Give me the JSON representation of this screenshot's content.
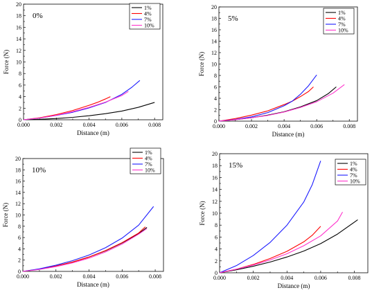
{
  "colors": {
    "1%": "#000000",
    "4%": "#ff0000",
    "7%": "#1a1aff",
    "10%": "#ff33cc"
  },
  "chart_data": [
    {
      "type": "line",
      "title": "0%",
      "xlabel": "Distance (m)",
      "ylabel": "Force (N)",
      "xlim": [
        0,
        0.0085
      ],
      "ylim": [
        0,
        20
      ],
      "xticks": [
        "0.000",
        "0.002",
        "0.004",
        "0.006",
        "0.008"
      ],
      "yticks": [
        "0",
        "2",
        "4",
        "6",
        "8",
        "10",
        "12",
        "14",
        "16",
        "18",
        "20"
      ],
      "legend_position": "top-right",
      "series": [
        {
          "name": "1%",
          "x": [
            0,
            0.001,
            0.002,
            0.003,
            0.004,
            0.005,
            0.006,
            0.007,
            0.008
          ],
          "y": [
            0,
            0.08,
            0.22,
            0.42,
            0.7,
            1.05,
            1.5,
            2.15,
            3.0
          ]
        },
        {
          "name": "4%",
          "x": [
            0,
            0.001,
            0.002,
            0.003,
            0.004,
            0.0045,
            0.005,
            0.0053
          ],
          "y": [
            0,
            0.35,
            0.9,
            1.6,
            2.5,
            3.0,
            3.6,
            4.0
          ]
        },
        {
          "name": "7%",
          "x": [
            0,
            0.001,
            0.002,
            0.003,
            0.004,
            0.005,
            0.006,
            0.0066,
            0.0071
          ],
          "y": [
            0,
            0.3,
            0.75,
            1.3,
            2.05,
            3.0,
            4.4,
            5.6,
            6.8
          ]
        },
        {
          "name": "10%",
          "x": [
            0,
            0.001,
            0.002,
            0.003,
            0.004,
            0.005,
            0.006,
            0.0064
          ],
          "y": [
            0,
            0.3,
            0.78,
            1.4,
            2.15,
            3.05,
            4.2,
            4.9
          ]
        }
      ]
    },
    {
      "type": "line",
      "title": "5%",
      "xlabel": "Distance (m)",
      "ylabel": "Force (N)",
      "xlim": [
        0,
        0.0085
      ],
      "ylim": [
        0,
        20
      ],
      "xticks": [
        "0.000",
        "0.002",
        "0.004",
        "0.006",
        "0.008"
      ],
      "yticks": [
        "0",
        "2",
        "4",
        "6",
        "8",
        "10",
        "12",
        "14",
        "16",
        "18",
        "20"
      ],
      "legend_position": "top-right",
      "series": [
        {
          "name": "1%",
          "x": [
            0,
            0.001,
            0.002,
            0.003,
            0.004,
            0.005,
            0.006,
            0.0067,
            0.0072
          ],
          "y": [
            0,
            0.25,
            0.6,
            1.05,
            1.65,
            2.5,
            3.6,
            4.8,
            6.0
          ]
        },
        {
          "name": "4%",
          "x": [
            0,
            0.001,
            0.002,
            0.003,
            0.004,
            0.0045,
            0.005,
            0.0055,
            0.0058
          ],
          "y": [
            0,
            0.45,
            1.05,
            1.8,
            2.9,
            3.5,
            4.3,
            5.2,
            6.0
          ]
        },
        {
          "name": "7%",
          "x": [
            0,
            0.001,
            0.002,
            0.003,
            0.004,
            0.0045,
            0.005,
            0.0055,
            0.006
          ],
          "y": [
            0,
            0.3,
            0.75,
            1.5,
            2.7,
            3.5,
            4.7,
            6.2,
            8.1
          ]
        },
        {
          "name": "10%",
          "x": [
            0,
            0.001,
            0.002,
            0.003,
            0.004,
            0.005,
            0.006,
            0.007,
            0.0077
          ],
          "y": [
            0,
            0.25,
            0.6,
            1.0,
            1.6,
            2.4,
            3.4,
            4.9,
            6.4
          ]
        }
      ]
    },
    {
      "type": "line",
      "title": "10%",
      "xlabel": "Distance (m)",
      "ylabel": "Force (N)",
      "xlim": [
        0,
        0.0085
      ],
      "ylim": [
        0,
        20
      ],
      "xticks": [
        "0.000",
        "0.002",
        "0.004",
        "0.006",
        "0.008"
      ],
      "yticks": [
        "0",
        "2",
        "4",
        "6",
        "8",
        "10",
        "12",
        "14",
        "16",
        "18",
        "20"
      ],
      "legend_position": "top-right",
      "series": [
        {
          "name": "1%",
          "x": [
            0,
            0.001,
            0.002,
            0.003,
            0.004,
            0.005,
            0.006,
            0.007,
            0.0075
          ],
          "y": [
            0,
            0.4,
            0.95,
            1.65,
            2.55,
            3.65,
            5.05,
            6.7,
            7.8
          ]
        },
        {
          "name": "4%",
          "x": [
            0,
            0.001,
            0.002,
            0.003,
            0.004,
            0.005,
            0.006,
            0.007,
            0.0074
          ],
          "y": [
            0,
            0.4,
            0.95,
            1.65,
            2.55,
            3.7,
            5.1,
            6.8,
            7.9
          ]
        },
        {
          "name": "7%",
          "x": [
            0,
            0.001,
            0.002,
            0.003,
            0.004,
            0.005,
            0.006,
            0.007,
            0.0079
          ],
          "y": [
            0,
            0.45,
            1.1,
            1.9,
            2.9,
            4.2,
            5.9,
            8.2,
            11.5
          ]
        },
        {
          "name": "10%",
          "x": [
            0,
            0.001,
            0.002,
            0.003,
            0.004,
            0.005,
            0.006,
            0.007,
            0.0075
          ],
          "y": [
            0,
            0.35,
            0.85,
            1.5,
            2.35,
            3.45,
            4.85,
            6.6,
            7.6
          ]
        }
      ]
    },
    {
      "type": "line",
      "title": "15%",
      "xlabel": "Distance (m)",
      "ylabel": "Force (N)",
      "xlim": [
        0,
        0.0088
      ],
      "ylim": [
        0,
        20
      ],
      "xticks": [
        "0.000",
        "0.002",
        "0.004",
        "0.006",
        "0.008"
      ],
      "yticks": [
        "0",
        "2",
        "4",
        "6",
        "8",
        "10",
        "12",
        "14",
        "16",
        "18",
        "20"
      ],
      "legend_position": "top-right",
      "series": [
        {
          "name": "1%",
          "x": [
            0,
            0.001,
            0.002,
            0.003,
            0.004,
            0.005,
            0.006,
            0.007,
            0.0082
          ],
          "y": [
            0,
            0.5,
            1.1,
            1.8,
            2.65,
            3.65,
            4.9,
            6.5,
            8.9
          ]
        },
        {
          "name": "4%",
          "x": [
            0,
            0.001,
            0.002,
            0.003,
            0.004,
            0.005,
            0.0055,
            0.006
          ],
          "y": [
            0,
            0.6,
            1.4,
            2.4,
            3.6,
            5.2,
            6.3,
            7.8
          ]
        },
        {
          "name": "7%",
          "x": [
            0,
            0.001,
            0.002,
            0.003,
            0.004,
            0.005,
            0.0055,
            0.006
          ],
          "y": [
            0,
            1.2,
            2.9,
            5.1,
            8.0,
            11.9,
            14.8,
            18.8
          ]
        },
        {
          "name": "10%",
          "x": [
            0,
            0.001,
            0.002,
            0.003,
            0.004,
            0.005,
            0.006,
            0.007,
            0.0073
          ],
          "y": [
            0,
            0.6,
            1.3,
            2.15,
            3.2,
            4.55,
            6.2,
            8.7,
            10.2
          ]
        }
      ]
    }
  ]
}
